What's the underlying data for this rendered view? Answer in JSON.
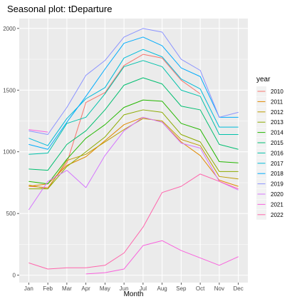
{
  "chart_data": {
    "type": "line",
    "title": "Seasonal plot: tDeparture",
    "xlabel": "Month",
    "ylabel": "",
    "categories": [
      "Jan",
      "Feb",
      "Mar",
      "Apr",
      "May",
      "Jun",
      "Jul",
      "Aug",
      "Sep",
      "Oct",
      "Nov",
      "Dec"
    ],
    "ylim": [
      -60,
      2080
    ],
    "yticks": [
      0,
      500,
      1000,
      1500,
      2000
    ],
    "grid": true,
    "legend_title": "year",
    "legend_position": "right",
    "series": [
      {
        "name": "2010",
        "color": "#F8766D",
        "values": [
          720,
          710,
          910,
          1400,
          1480,
          1700,
          1790,
          1760,
          1580,
          1470,
          null,
          null
        ]
      },
      {
        "name": "2011",
        "color": "#E18A00",
        "values": [
          720,
          740,
          890,
          960,
          1090,
          1220,
          1280,
          1240,
          1080,
          970,
          770,
          720
        ]
      },
      {
        "name": "2012",
        "color": "#BE9C00",
        "values": [
          730,
          700,
          930,
          980,
          1080,
          1180,
          1270,
          1250,
          1100,
          1050,
          800,
          780
        ]
      },
      {
        "name": "2013",
        "color": "#8CAB00",
        "values": [
          700,
          700,
          880,
          1000,
          1120,
          1300,
          1340,
          1320,
          1140,
          1080,
          840,
          840
        ]
      },
      {
        "name": "2014",
        "color": "#24B700",
        "values": [
          760,
          740,
          940,
          1110,
          1220,
          1360,
          1420,
          1410,
          1230,
          1180,
          920,
          910
        ]
      },
      {
        "name": "2015",
        "color": "#00BE70",
        "values": [
          860,
          850,
          1060,
          1170,
          1340,
          1540,
          1600,
          1550,
          1370,
          1340,
          1060,
          1020
        ]
      },
      {
        "name": "2016",
        "color": "#00C1AB",
        "values": [
          980,
          990,
          1230,
          1280,
          1470,
          1690,
          1740,
          1690,
          1500,
          1450,
          1140,
          1140
        ]
      },
      {
        "name": "2017",
        "color": "#00BBDA",
        "values": [
          1110,
          1050,
          1270,
          1430,
          1520,
          1760,
          1830,
          1770,
          1590,
          1510,
          1200,
          1200
        ]
      },
      {
        "name": "2018",
        "color": "#00ACFC",
        "values": [
          1060,
          1020,
          1240,
          1450,
          1670,
          1880,
          1930,
          1860,
          1680,
          1610,
          1280,
          1280
        ]
      },
      {
        "name": "2019",
        "color": "#8B93FF",
        "values": [
          1170,
          1140,
          1360,
          1620,
          1740,
          1930,
          2000,
          1970,
          1750,
          1660,
          1280,
          1320
        ]
      },
      {
        "name": "2020",
        "color": "#D575FE",
        "values": [
          530,
          760,
          850,
          710,
          970,
          1170,
          1280,
          1240,
          1070,
          1030,
          760,
          690
        ]
      },
      {
        "name": "2021",
        "color": "#F962DD",
        "values": [
          1180,
          1160,
          null,
          10,
          20,
          50,
          240,
          280,
          200,
          140,
          80,
          150
        ]
      },
      {
        "name": "2022",
        "color": "#FF65AC",
        "values": [
          100,
          50,
          60,
          60,
          80,
          180,
          390,
          670,
          720,
          820,
          760,
          700
        ]
      }
    ]
  }
}
